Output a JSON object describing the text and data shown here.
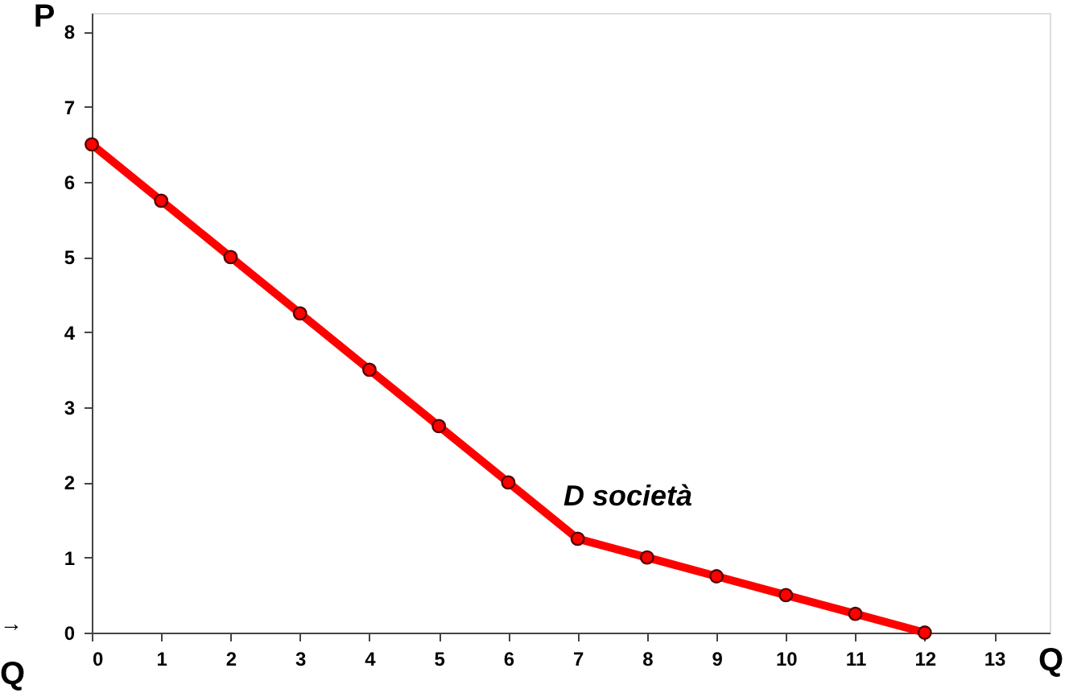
{
  "chart_data": {
    "type": "line",
    "xlabel": "Q",
    "ylabel": "P",
    "x": [
      0,
      1,
      2,
      3,
      4,
      5,
      6,
      7,
      8,
      9,
      10,
      11,
      12
    ],
    "series": [
      {
        "color": "#ff0000",
        "values": [
          6.5,
          5.75,
          5,
          4.25,
          3.5,
          2.75,
          2,
          1.25,
          1,
          0.75,
          0.5,
          0.25,
          0
        ]
      }
    ],
    "xlim": [
      0,
      13.8
    ],
    "ylim": [
      0,
      8.25
    ],
    "xticks": [
      0,
      1,
      2,
      3,
      4,
      5,
      6,
      7,
      8,
      9,
      10,
      11,
      12,
      13
    ],
    "yticks": [
      0,
      1,
      2,
      3,
      4,
      5,
      6,
      7,
      8
    ],
    "grid": false,
    "marker": "circle",
    "line_style": "solid",
    "annotations": [
      "D società",
      "→",
      "Q"
    ]
  }
}
